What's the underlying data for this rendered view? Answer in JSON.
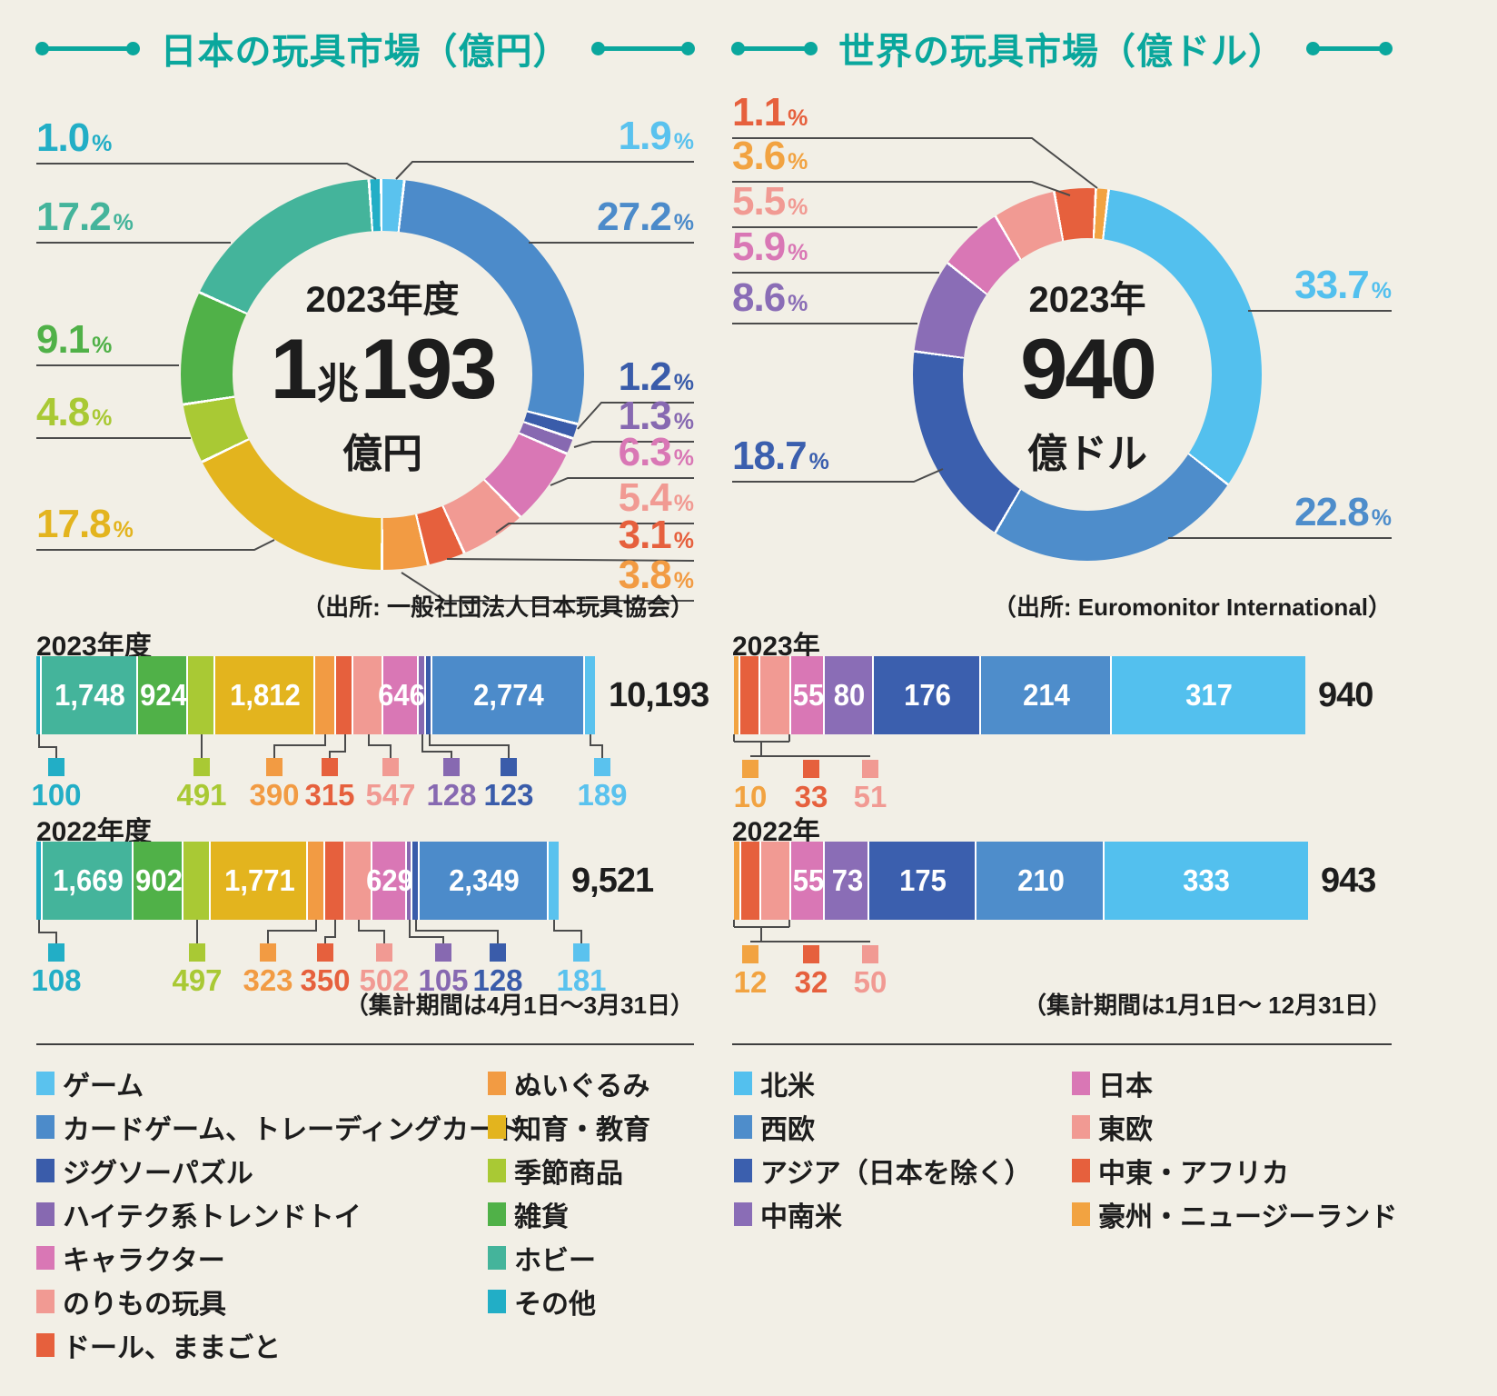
{
  "japan": {
    "title": "日本の玩具市場（億円）",
    "source": "（出所: 一般社団法人日本玩具協会）",
    "note": "（集計期間は4月1日～3月31日）",
    "donut_center": {
      "era": "2023年度",
      "value_a": "1",
      "value_unit": "兆",
      "value_b": "193",
      "unit": "億円"
    },
    "legend": {
      "col1": [
        {
          "label": "ゲーム",
          "color": "#5ac2ee"
        },
        {
          "label": "カードゲーム、トレーディングカード",
          "color": "#4c8bca"
        },
        {
          "label": "ジグソーパズル",
          "color": "#3a5caa"
        },
        {
          "label": "ハイテク系トレンドトイ",
          "color": "#8769b1"
        },
        {
          "label": "キャラクター",
          "color": "#d977b5"
        },
        {
          "label": "のりもの玩具",
          "color": "#f19a93"
        },
        {
          "label": "ドール、ままごと",
          "color": "#e6603d"
        }
      ],
      "col2": [
        {
          "label": "ぬいぐるみ",
          "color": "#f29b43"
        },
        {
          "label": "知育・教育",
          "color": "#e3b41e"
        },
        {
          "label": "季節商品",
          "color": "#a9c934"
        },
        {
          "label": "雑貨",
          "color": "#50b148"
        },
        {
          "label": "ホビー",
          "color": "#44b49b"
        },
        {
          "label": "その他",
          "color": "#22aec6"
        }
      ]
    }
  },
  "world": {
    "title": "世界の玩具市場（億ドル）",
    "source": "（出所: Euromonitor International）",
    "note": "（集計期間は1月1日～ 12月31日）",
    "donut_center": {
      "era": "2023年",
      "value_b": "940",
      "unit": "億ドル"
    },
    "legend": {
      "col1": [
        {
          "label": "北米",
          "color": "#53c0ee"
        },
        {
          "label": "西欧",
          "color": "#4e8dcb"
        },
        {
          "label": "アジア（日本を除く）",
          "color": "#3b5fae"
        },
        {
          "label": "中南米",
          "color": "#8a6db6"
        }
      ],
      "col2": [
        {
          "label": "日本",
          "color": "#d977b5"
        },
        {
          "label": "東欧",
          "color": "#f19a93"
        },
        {
          "label": "中東・アフリカ",
          "color": "#e6603d"
        },
        {
          "label": "豪州・ニュージーランド",
          "color": "#f2a341"
        }
      ]
    }
  },
  "chart_data": [
    {
      "id": "japan-donut",
      "type": "pie",
      "title": "日本の玩具市場（億円）",
      "center_label": "2023年度 1兆193億円",
      "unit": "%",
      "slices": [
        {
          "label": "ゲーム",
          "pct": 1.9,
          "color": "#5ac2ee"
        },
        {
          "label": "カードゲーム、トレーディングカード",
          "pct": 27.2,
          "color": "#4c8bca"
        },
        {
          "label": "ジグソーパズル",
          "pct": 1.2,
          "color": "#3a5caa"
        },
        {
          "label": "ハイテク系トレンドトイ",
          "pct": 1.3,
          "color": "#8769b1"
        },
        {
          "label": "キャラクター",
          "pct": 6.3,
          "color": "#d977b5"
        },
        {
          "label": "のりもの玩具",
          "pct": 5.4,
          "color": "#f19a93"
        },
        {
          "label": "ドール、ままごと",
          "pct": 3.1,
          "color": "#e6603d"
        },
        {
          "label": "ぬいぐるみ",
          "pct": 3.8,
          "color": "#f29b43"
        },
        {
          "label": "知育・教育",
          "pct": 17.8,
          "color": "#e3b41e"
        },
        {
          "label": "季節商品",
          "pct": 4.8,
          "color": "#a9c934"
        },
        {
          "label": "雑貨",
          "pct": 9.1,
          "color": "#50b148"
        },
        {
          "label": "ホビー",
          "pct": 17.2,
          "color": "#44b49b"
        },
        {
          "label": "その他",
          "pct": 1.0,
          "color": "#22aec6"
        }
      ]
    },
    {
      "id": "japan-bars",
      "type": "bar",
      "unit": "億円",
      "categories": [
        "その他",
        "ホビー",
        "雑貨",
        "季節商品",
        "知育・教育",
        "ぬいぐるみ",
        "ドール、ままごと",
        "のりもの玩具",
        "キャラクター",
        "ハイテク系トレンドトイ",
        "ジグソーパズル",
        "カードゲーム、トレーディングカード",
        "ゲーム"
      ],
      "colors": [
        "#22aec6",
        "#44b49b",
        "#50b148",
        "#a9c934",
        "#e3b41e",
        "#f29b43",
        "#e6603d",
        "#f19a93",
        "#d977b5",
        "#8769b1",
        "#3a5caa",
        "#4c8bca",
        "#5ac2ee"
      ],
      "rows": [
        {
          "label": "2023年度",
          "total": 10193,
          "total_display": "10,193",
          "values": [
            100,
            1748,
            924,
            491,
            1812,
            390,
            315,
            547,
            646,
            128,
            123,
            2774,
            189
          ],
          "displays": [
            "100",
            "1,748",
            "924",
            "491",
            "1,812",
            "390",
            "315",
            "547",
            "646",
            "128",
            "123",
            "2,774",
            "189"
          ]
        },
        {
          "label": "2022年度",
          "total": 9521,
          "total_display": "9,521",
          "values": [
            108,
            1669,
            902,
            497,
            1771,
            323,
            350,
            502,
            629,
            105,
            128,
            2349,
            181
          ],
          "displays": [
            "108",
            "1,669",
            "902",
            "497",
            "1,771",
            "323",
            "350",
            "502",
            "629",
            "105",
            "128",
            "2,349",
            "181"
          ]
        }
      ]
    },
    {
      "id": "world-donut",
      "type": "pie",
      "title": "世界の玩具市場（億ドル）",
      "center_label": "2023年 940億ドル",
      "unit": "%",
      "slices": [
        {
          "label": "北米",
          "pct": 33.7,
          "color": "#53c0ee"
        },
        {
          "label": "西欧",
          "pct": 22.8,
          "color": "#4e8dcb"
        },
        {
          "label": "アジア（日本を除く）",
          "pct": 18.7,
          "color": "#3b5fae"
        },
        {
          "label": "中南米",
          "pct": 8.6,
          "color": "#8a6db6"
        },
        {
          "label": "日本",
          "pct": 5.9,
          "color": "#d977b5"
        },
        {
          "label": "東欧",
          "pct": 5.5,
          "color": "#f19a93"
        },
        {
          "label": "中東・アフリカ",
          "pct": 3.6,
          "color": "#e6603d",
          "label_color": "#f2a341"
        },
        {
          "label": "豪州・ニュージーランド",
          "pct": 1.1,
          "color": "#f2a341",
          "label_color": "#e6603d"
        }
      ]
    },
    {
      "id": "world-bars",
      "type": "bar",
      "unit": "億ドル",
      "categories": [
        "豪州・ニュージーランド",
        "中東・アフリカ",
        "東欧",
        "日本",
        "中南米",
        "アジア（日本を除く）",
        "西欧",
        "北米"
      ],
      "colors": [
        "#f2a341",
        "#e6603d",
        "#f19a93",
        "#d977b5",
        "#8a6db6",
        "#3b5fae",
        "#4e8dcb",
        "#53c0ee"
      ],
      "rows": [
        {
          "label": "2023年",
          "total": 940,
          "total_display": "940",
          "values": [
            10,
            33,
            51,
            55,
            80,
            176,
            214,
            317
          ],
          "displays": [
            "10",
            "33",
            "51",
            "55",
            "80",
            "176",
            "214",
            "317"
          ]
        },
        {
          "label": "2022年",
          "total": 943,
          "total_display": "943",
          "values": [
            12,
            32,
            50,
            55,
            73,
            175,
            210,
            333
          ],
          "displays": [
            "12",
            "32",
            "50",
            "55",
            "73",
            "175",
            "210",
            "333"
          ]
        }
      ]
    }
  ]
}
